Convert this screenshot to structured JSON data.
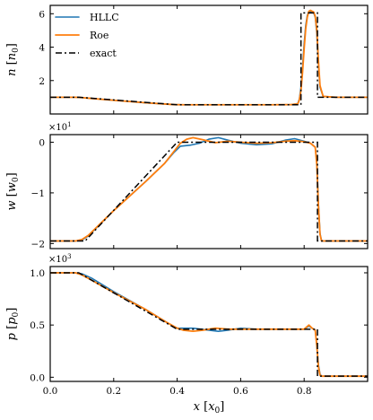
{
  "colors": {
    "hllc": "#1f77b4",
    "roe": "#ff7f0e",
    "exact": "#000000"
  },
  "legend": {
    "items": [
      "HLLC",
      "Roe",
      "exact"
    ]
  },
  "chart_data": [
    {
      "type": "line",
      "panel": "density",
      "ylabel": "n [n0]",
      "ylabel_main": "n",
      "ylabel_unit": "n",
      "ylabel_unit_sub": "0",
      "xlim": [
        0,
        1
      ],
      "ylim": [
        0,
        6.5
      ],
      "yticks": [
        2,
        4,
        6
      ],
      "ytick_labels": [
        "2",
        "4",
        "6"
      ],
      "grid": false,
      "legend_position": "top-left",
      "series": [
        {
          "name": "HLLC",
          "x": [
            0,
            0.08,
            0.1,
            0.13,
            0.2,
            0.3,
            0.39,
            0.42,
            0.5,
            0.6,
            0.7,
            0.76,
            0.78,
            0.785,
            0.79,
            0.795,
            0.8,
            0.805,
            0.81,
            0.815,
            0.82,
            0.825,
            0.83,
            0.835,
            0.84,
            0.845,
            0.85,
            0.86,
            0.9,
            1.0
          ],
          "y": [
            1.0,
            1.0,
            0.98,
            0.93,
            0.82,
            0.67,
            0.56,
            0.55,
            0.55,
            0.55,
            0.55,
            0.56,
            0.62,
            0.9,
            1.6,
            2.8,
            4.2,
            5.3,
            5.9,
            6.1,
            6.1,
            6.1,
            6.05,
            5.8,
            4.8,
            3.0,
            1.6,
            1.05,
            1.0,
            1.0
          ]
        },
        {
          "name": "Roe",
          "x": [
            0,
            0.08,
            0.1,
            0.13,
            0.2,
            0.3,
            0.39,
            0.42,
            0.5,
            0.6,
            0.7,
            0.76,
            0.78,
            0.785,
            0.79,
            0.795,
            0.8,
            0.805,
            0.81,
            0.815,
            0.82,
            0.825,
            0.83,
            0.835,
            0.84,
            0.845,
            0.85,
            0.86,
            0.9,
            1.0
          ],
          "y": [
            1.0,
            1.0,
            0.98,
            0.93,
            0.82,
            0.67,
            0.56,
            0.55,
            0.55,
            0.55,
            0.55,
            0.56,
            0.6,
            0.85,
            1.4,
            2.5,
            3.9,
            5.1,
            5.8,
            6.15,
            6.2,
            6.15,
            6.1,
            5.85,
            5.0,
            3.2,
            1.7,
            1.05,
            1.0,
            1.0
          ]
        },
        {
          "name": "exact",
          "x": [
            0,
            0.09,
            0.4,
            0.79,
            0.79,
            0.842,
            0.842,
            1.0
          ],
          "y": [
            1.0,
            1.0,
            0.55,
            0.55,
            6.05,
            6.05,
            1.0,
            1.0
          ]
        }
      ]
    },
    {
      "type": "line",
      "panel": "velocity",
      "ylabel": "w [w0]",
      "ylabel_main": "w",
      "ylabel_unit": "w",
      "ylabel_unit_sub": "0",
      "scale_base": "×10",
      "scale_exp": "1",
      "xlim": [
        0,
        1
      ],
      "ylim": [
        -2.1,
        0.15
      ],
      "yticks": [
        -2,
        -1,
        0
      ],
      "ytick_labels": [
        "−2",
        "−1",
        "0"
      ],
      "grid": false,
      "series": [
        {
          "name": "HLLC",
          "x": [
            0,
            0.08,
            0.1,
            0.12,
            0.2,
            0.3,
            0.36,
            0.39,
            0.41,
            0.44,
            0.47,
            0.5,
            0.53,
            0.56,
            0.6,
            0.65,
            0.7,
            0.74,
            0.77,
            0.8,
            0.82,
            0.835,
            0.84,
            0.845,
            0.85,
            0.855,
            0.86,
            0.9,
            1.0
          ],
          "y": [
            -1.95,
            -1.95,
            -1.93,
            -1.85,
            -1.35,
            -0.78,
            -0.42,
            -0.2,
            -0.08,
            -0.06,
            -0.02,
            0.06,
            0.09,
            0.04,
            -0.02,
            -0.05,
            -0.03,
            0.04,
            0.07,
            0.02,
            -0.02,
            -0.1,
            -0.4,
            -1.2,
            -1.8,
            -1.95,
            -1.95,
            -1.95,
            -1.95
          ]
        },
        {
          "name": "Roe",
          "x": [
            0,
            0.08,
            0.1,
            0.12,
            0.2,
            0.3,
            0.36,
            0.39,
            0.41,
            0.43,
            0.45,
            0.48,
            0.52,
            0.56,
            0.6,
            0.65,
            0.7,
            0.74,
            0.77,
            0.8,
            0.82,
            0.835,
            0.84,
            0.845,
            0.85,
            0.855,
            0.86,
            0.9,
            1.0
          ],
          "y": [
            -1.95,
            -1.95,
            -1.92,
            -1.84,
            -1.35,
            -0.78,
            -0.42,
            -0.18,
            -0.02,
            0.06,
            0.09,
            0.05,
            -0.01,
            0.02,
            0.0,
            -0.02,
            -0.01,
            0.02,
            0.03,
            0.01,
            -0.02,
            -0.1,
            -0.45,
            -1.25,
            -1.82,
            -1.95,
            -1.95,
            -1.95,
            -1.95
          ]
        },
        {
          "name": "exact",
          "x": [
            0,
            0.11,
            0.4,
            0.842,
            0.842,
            1.0
          ],
          "y": [
            -1.95,
            -1.95,
            0.0,
            0.0,
            -1.95,
            -1.95
          ]
        }
      ]
    },
    {
      "type": "line",
      "panel": "pressure",
      "ylabel": "p [p0]",
      "ylabel_main": "p",
      "ylabel_unit": "p",
      "ylabel_unit_sub": "0",
      "scale_base": "×10",
      "scale_exp": "3",
      "xlabel": "x [x0]",
      "xlabel_main": "x",
      "xlabel_unit": "x",
      "xlabel_unit_sub": "0",
      "xlim": [
        0,
        1
      ],
      "ylim": [
        -0.04,
        1.06
      ],
      "xticks": [
        0.0,
        0.2,
        0.4,
        0.6,
        0.8
      ],
      "xtick_labels": [
        "0.0",
        "0.2",
        "0.4",
        "0.6",
        "0.8"
      ],
      "yticks": [
        0.0,
        0.5,
        1.0
      ],
      "ytick_labels": [
        "0.0",
        "0.5",
        "1.0"
      ],
      "grid": false,
      "series": [
        {
          "name": "HLLC",
          "x": [
            0,
            0.08,
            0.1,
            0.13,
            0.2,
            0.3,
            0.37,
            0.4,
            0.45,
            0.5,
            0.53,
            0.56,
            0.6,
            0.65,
            0.7,
            0.75,
            0.78,
            0.8,
            0.815,
            0.825,
            0.835,
            0.84,
            0.845,
            0.85,
            0.855,
            0.86,
            0.9,
            1.0
          ],
          "y": [
            1.0,
            1.0,
            0.99,
            0.95,
            0.82,
            0.65,
            0.52,
            0.47,
            0.47,
            0.45,
            0.44,
            0.45,
            0.47,
            0.46,
            0.46,
            0.46,
            0.46,
            0.46,
            0.49,
            0.47,
            0.45,
            0.3,
            0.12,
            0.03,
            0.01,
            0.01,
            0.01,
            0.01
          ]
        },
        {
          "name": "Roe",
          "x": [
            0,
            0.08,
            0.1,
            0.13,
            0.2,
            0.3,
            0.37,
            0.4,
            0.42,
            0.45,
            0.48,
            0.52,
            0.56,
            0.6,
            0.65,
            0.7,
            0.75,
            0.78,
            0.8,
            0.815,
            0.825,
            0.835,
            0.84,
            0.845,
            0.85,
            0.855,
            0.86,
            0.9,
            1.0
          ],
          "y": [
            1.0,
            1.0,
            0.98,
            0.93,
            0.81,
            0.65,
            0.52,
            0.47,
            0.45,
            0.44,
            0.45,
            0.47,
            0.46,
            0.46,
            0.46,
            0.46,
            0.46,
            0.46,
            0.46,
            0.5,
            0.47,
            0.45,
            0.3,
            0.1,
            0.02,
            0.01,
            0.01,
            0.01,
            0.01
          ]
        },
        {
          "name": "exact",
          "x": [
            0,
            0.09,
            0.4,
            0.842,
            0.842,
            1.0
          ],
          "y": [
            1.0,
            1.0,
            0.46,
            0.46,
            0.01,
            0.01
          ]
        }
      ]
    }
  ]
}
